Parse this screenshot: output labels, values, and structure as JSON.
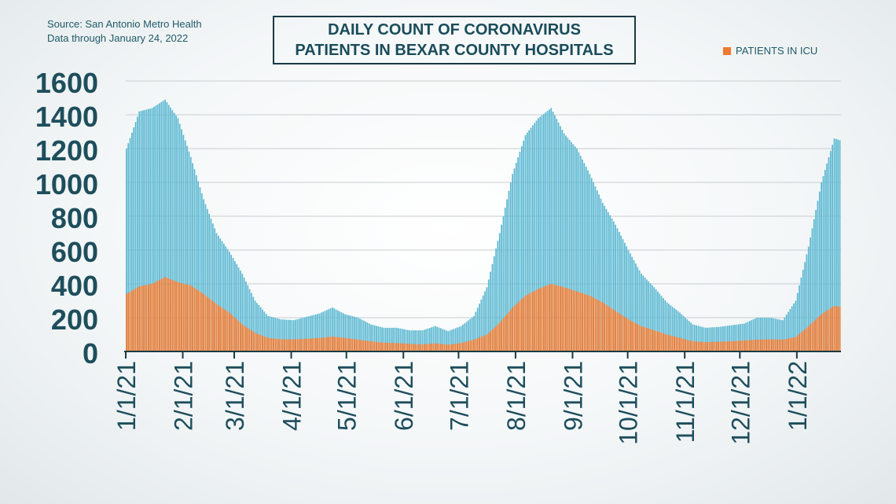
{
  "source_lines": [
    "Source: San Antonio Metro Health",
    "Data through January 24, 2022"
  ],
  "title_lines": [
    "DAILY COUNT OF CORONAVIRUS",
    "PATIENTS IN BEXAR COUNTY HOSPITALS"
  ],
  "legend": {
    "icu_label": "PATIENTS IN ICU"
  },
  "colors": {
    "total": "#5bb8d2",
    "icu": "#ee7a30",
    "axis_text": "#1e4e5c",
    "grid": "#c8ced0",
    "axis_line": "#1a3a44"
  },
  "chart_data": {
    "type": "bar",
    "title": "DAILY COUNT OF CORONAVIRUS PATIENTS IN BEXAR COUNTY HOSPITALS",
    "ylim": [
      0,
      1600
    ],
    "yticks": [
      "0",
      "200",
      "400",
      "600",
      "800",
      "1000",
      "1200",
      "1400",
      "1600"
    ],
    "grid": true,
    "legend_position": "top-right",
    "x_tick_labels": [
      "1/1/21",
      "2/1/21",
      "3/1/21",
      "4/1/21",
      "5/1/21",
      "6/1/21",
      "7/1/21",
      "8/1/21",
      "9/1/21",
      "10/1/21",
      "11/1/21",
      "12/1/21",
      "1/1/22"
    ],
    "date_range": [
      "2021-01-01",
      "2022-01-24"
    ],
    "series": [
      {
        "key": "total",
        "dates": [
          "2021-01-01",
          "2021-01-08",
          "2021-01-15",
          "2021-01-22",
          "2021-01-29",
          "2021-02-05",
          "2021-02-12",
          "2021-02-19",
          "2021-02-26",
          "2021-03-05",
          "2021-03-12",
          "2021-03-19",
          "2021-03-26",
          "2021-04-02",
          "2021-04-09",
          "2021-04-16",
          "2021-04-23",
          "2021-04-30",
          "2021-05-07",
          "2021-05-14",
          "2021-05-21",
          "2021-05-28",
          "2021-06-04",
          "2021-06-11",
          "2021-06-18",
          "2021-06-25",
          "2021-07-02",
          "2021-07-09",
          "2021-07-16",
          "2021-07-23",
          "2021-07-30",
          "2021-08-06",
          "2021-08-13",
          "2021-08-20",
          "2021-08-27",
          "2021-09-03",
          "2021-09-10",
          "2021-09-17",
          "2021-09-24",
          "2021-10-01",
          "2021-10-08",
          "2021-10-15",
          "2021-10-22",
          "2021-10-29",
          "2021-11-05",
          "2021-11-12",
          "2021-11-19",
          "2021-11-26",
          "2021-12-03",
          "2021-12-10",
          "2021-12-17",
          "2021-12-24",
          "2021-12-31",
          "2022-01-07",
          "2022-01-14",
          "2022-01-21",
          "2022-01-24"
        ],
        "values": [
          1200,
          1420,
          1440,
          1490,
          1380,
          1150,
          900,
          700,
          590,
          460,
          300,
          210,
          190,
          185,
          205,
          225,
          260,
          220,
          200,
          160,
          140,
          140,
          125,
          125,
          150,
          120,
          150,
          210,
          380,
          700,
          1050,
          1280,
          1380,
          1440,
          1290,
          1200,
          1050,
          880,
          750,
          600,
          460,
          380,
          290,
          230,
          160,
          140,
          145,
          155,
          165,
          200,
          200,
          185,
          300,
          620,
          1000,
          1260,
          1250
        ]
      },
      {
        "key": "icu",
        "name": "PATIENTS IN ICU",
        "dates": [
          "2021-01-01",
          "2021-01-08",
          "2021-01-15",
          "2021-01-22",
          "2021-01-29",
          "2021-02-05",
          "2021-02-12",
          "2021-02-19",
          "2021-02-26",
          "2021-03-05",
          "2021-03-12",
          "2021-03-19",
          "2021-03-26",
          "2021-04-02",
          "2021-04-09",
          "2021-04-16",
          "2021-04-23",
          "2021-04-30",
          "2021-05-07",
          "2021-05-14",
          "2021-05-21",
          "2021-05-28",
          "2021-06-04",
          "2021-06-11",
          "2021-06-18",
          "2021-06-25",
          "2021-07-02",
          "2021-07-09",
          "2021-07-16",
          "2021-07-23",
          "2021-07-30",
          "2021-08-06",
          "2021-08-13",
          "2021-08-20",
          "2021-08-27",
          "2021-09-03",
          "2021-09-10",
          "2021-09-17",
          "2021-09-24",
          "2021-10-01",
          "2021-10-08",
          "2021-10-15",
          "2021-10-22",
          "2021-10-29",
          "2021-11-05",
          "2021-11-12",
          "2021-11-19",
          "2021-11-26",
          "2021-12-03",
          "2021-12-10",
          "2021-12-17",
          "2021-12-24",
          "2021-12-31",
          "2022-01-07",
          "2022-01-14",
          "2022-01-21",
          "2022-01-24"
        ],
        "values": [
          340,
          385,
          400,
          440,
          410,
          390,
          340,
          280,
          230,
          160,
          110,
          80,
          72,
          72,
          75,
          80,
          88,
          80,
          70,
          60,
          52,
          50,
          45,
          42,
          48,
          40,
          50,
          70,
          100,
          170,
          260,
          330,
          370,
          400,
          380,
          355,
          330,
          290,
          240,
          190,
          150,
          125,
          100,
          80,
          60,
          55,
          58,
          60,
          65,
          70,
          72,
          70,
          85,
          150,
          220,
          270,
          265
        ]
      }
    ]
  }
}
